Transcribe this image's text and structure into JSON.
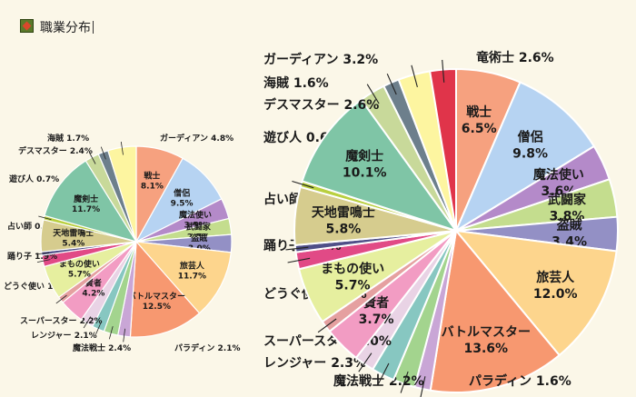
{
  "header": {
    "title": "職業分布",
    "icon": "emblem-icon"
  },
  "chart_data": [
    {
      "type": "pie",
      "title": "",
      "unit": "%",
      "slices": [
        {
          "label": "戦士",
          "value": 8.1,
          "color": "#f6a17f",
          "inside": true
        },
        {
          "label": "僧侶",
          "value": 9.5,
          "color": "#b6d3f2",
          "inside": true
        },
        {
          "label": "魔法使い",
          "value": 3.5,
          "color": "#b48ac9",
          "inside": true
        },
        {
          "label": "武闘家",
          "value": 2.7,
          "color": "#c4dd8e",
          "inside": true
        },
        {
          "label": "盗賊",
          "value": 3.0,
          "color": "#9390c5",
          "inside": true
        },
        {
          "label": "旅芸人",
          "value": 11.7,
          "color": "#fdd58d",
          "inside": true
        },
        {
          "label": "バトルマスター",
          "value": 12.5,
          "color": "#f79870",
          "inside": true
        },
        {
          "label": "パラディン",
          "value": 2.1,
          "color": "#c9a6d6",
          "inside": false
        },
        {
          "label": "魔法戦士",
          "value": 2.4,
          "color": "#a3d48e",
          "inside": false
        },
        {
          "label": "レンジャー",
          "value": 2.1,
          "color": "#87c7c1",
          "inside": false
        },
        {
          "label": "スーパースター",
          "value": 2.2,
          "color": "#e9d3e5",
          "inside": false
        },
        {
          "label": "賢者",
          "value": 4.2,
          "color": "#f29cc3",
          "inside": true
        },
        {
          "label": "どうぐ使い",
          "value": 1.1,
          "color": "#e5a0a0",
          "inside": false
        },
        {
          "label": "まもの使い",
          "value": 5.7,
          "color": "#e6ef9f",
          "inside": true
        },
        {
          "label": "踊り子",
          "value": 1.9,
          "color": "#e14a86",
          "inside": false
        },
        {
          "label": "占い師",
          "value": 0.6,
          "color": "#4f4f88",
          "inside": false
        },
        {
          "label": "天地雷鳴士",
          "value": 5.4,
          "color": "#d6cc8e",
          "inside": true
        },
        {
          "label": "遊び人",
          "value": 0.7,
          "color": "#b9cf3f",
          "inside": false
        },
        {
          "label": "魔剣士",
          "value": 11.7,
          "color": "#7fc5a6",
          "inside": true
        },
        {
          "label": "デスマスター",
          "value": 2.4,
          "color": "#c8d99a",
          "inside": false
        },
        {
          "label": "海賊",
          "value": 1.7,
          "color": "#6d7f8c",
          "inside": false
        },
        {
          "label": "ガーディアン",
          "value": 4.8,
          "color": "#fdf5a0",
          "inside": false
        }
      ]
    },
    {
      "type": "pie",
      "title": "",
      "unit": "%",
      "slices": [
        {
          "label": "戦士",
          "value": 6.5,
          "color": "#f6a17f",
          "inside": true
        },
        {
          "label": "僧侶",
          "value": 9.8,
          "color": "#b6d3f2",
          "inside": true
        },
        {
          "label": "魔法使い",
          "value": 3.6,
          "color": "#b48ac9",
          "inside": true
        },
        {
          "label": "武闘家",
          "value": 3.8,
          "color": "#c4dd8e",
          "inside": true
        },
        {
          "label": "盗賊",
          "value": 3.4,
          "color": "#9390c5",
          "inside": true
        },
        {
          "label": "旅芸人",
          "value": 12.0,
          "color": "#fdd58d",
          "inside": true
        },
        {
          "label": "バトルマスター",
          "value": 13.6,
          "color": "#f79870",
          "inside": true
        },
        {
          "label": "パラディン",
          "value": 1.6,
          "color": "#c9a6d6",
          "inside": false
        },
        {
          "label": "魔法戦士",
          "value": 2.2,
          "color": "#a3d48e",
          "inside": false
        },
        {
          "label": "レンジャー",
          "value": 2.3,
          "color": "#87c7c1",
          "inside": false
        },
        {
          "label": "スーパースター",
          "value": 2.0,
          "color": "#e9d3e5",
          "inside": false
        },
        {
          "label": "賢者",
          "value": 3.7,
          "color": "#f29cc3",
          "inside": true
        },
        {
          "label": "どうぐ使い",
          "value": 1.2,
          "color": "#e5a0a0",
          "inside": false
        },
        {
          "label": "まもの使い",
          "value": 5.7,
          "color": "#e6ef9f",
          "inside": true
        },
        {
          "label": "踊り子",
          "value": 1.7,
          "color": "#e14a86",
          "inside": false
        },
        {
          "label": "占い師",
          "value": 0.7,
          "color": "#4f4f88",
          "inside": false
        },
        {
          "label": "天地雷鳴士",
          "value": 5.8,
          "color": "#d6cc8e",
          "inside": true
        },
        {
          "label": "遊び人",
          "value": 0.6,
          "color": "#b9cf3f",
          "inside": false
        },
        {
          "label": "魔剣士",
          "value": 10.1,
          "color": "#7fc5a6",
          "inside": true
        },
        {
          "label": "デスマスター",
          "value": 2.6,
          "color": "#c8d99a",
          "inside": false
        },
        {
          "label": "海賊",
          "value": 1.6,
          "color": "#6d7f8c",
          "inside": false
        },
        {
          "label": "ガーディアン",
          "value": 3.2,
          "color": "#fdf5a0",
          "inside": false
        },
        {
          "label": "竜術士",
          "value": 2.6,
          "color": "#e0344a",
          "inside": false,
          "label_color": "#e0122a"
        }
      ]
    }
  ]
}
